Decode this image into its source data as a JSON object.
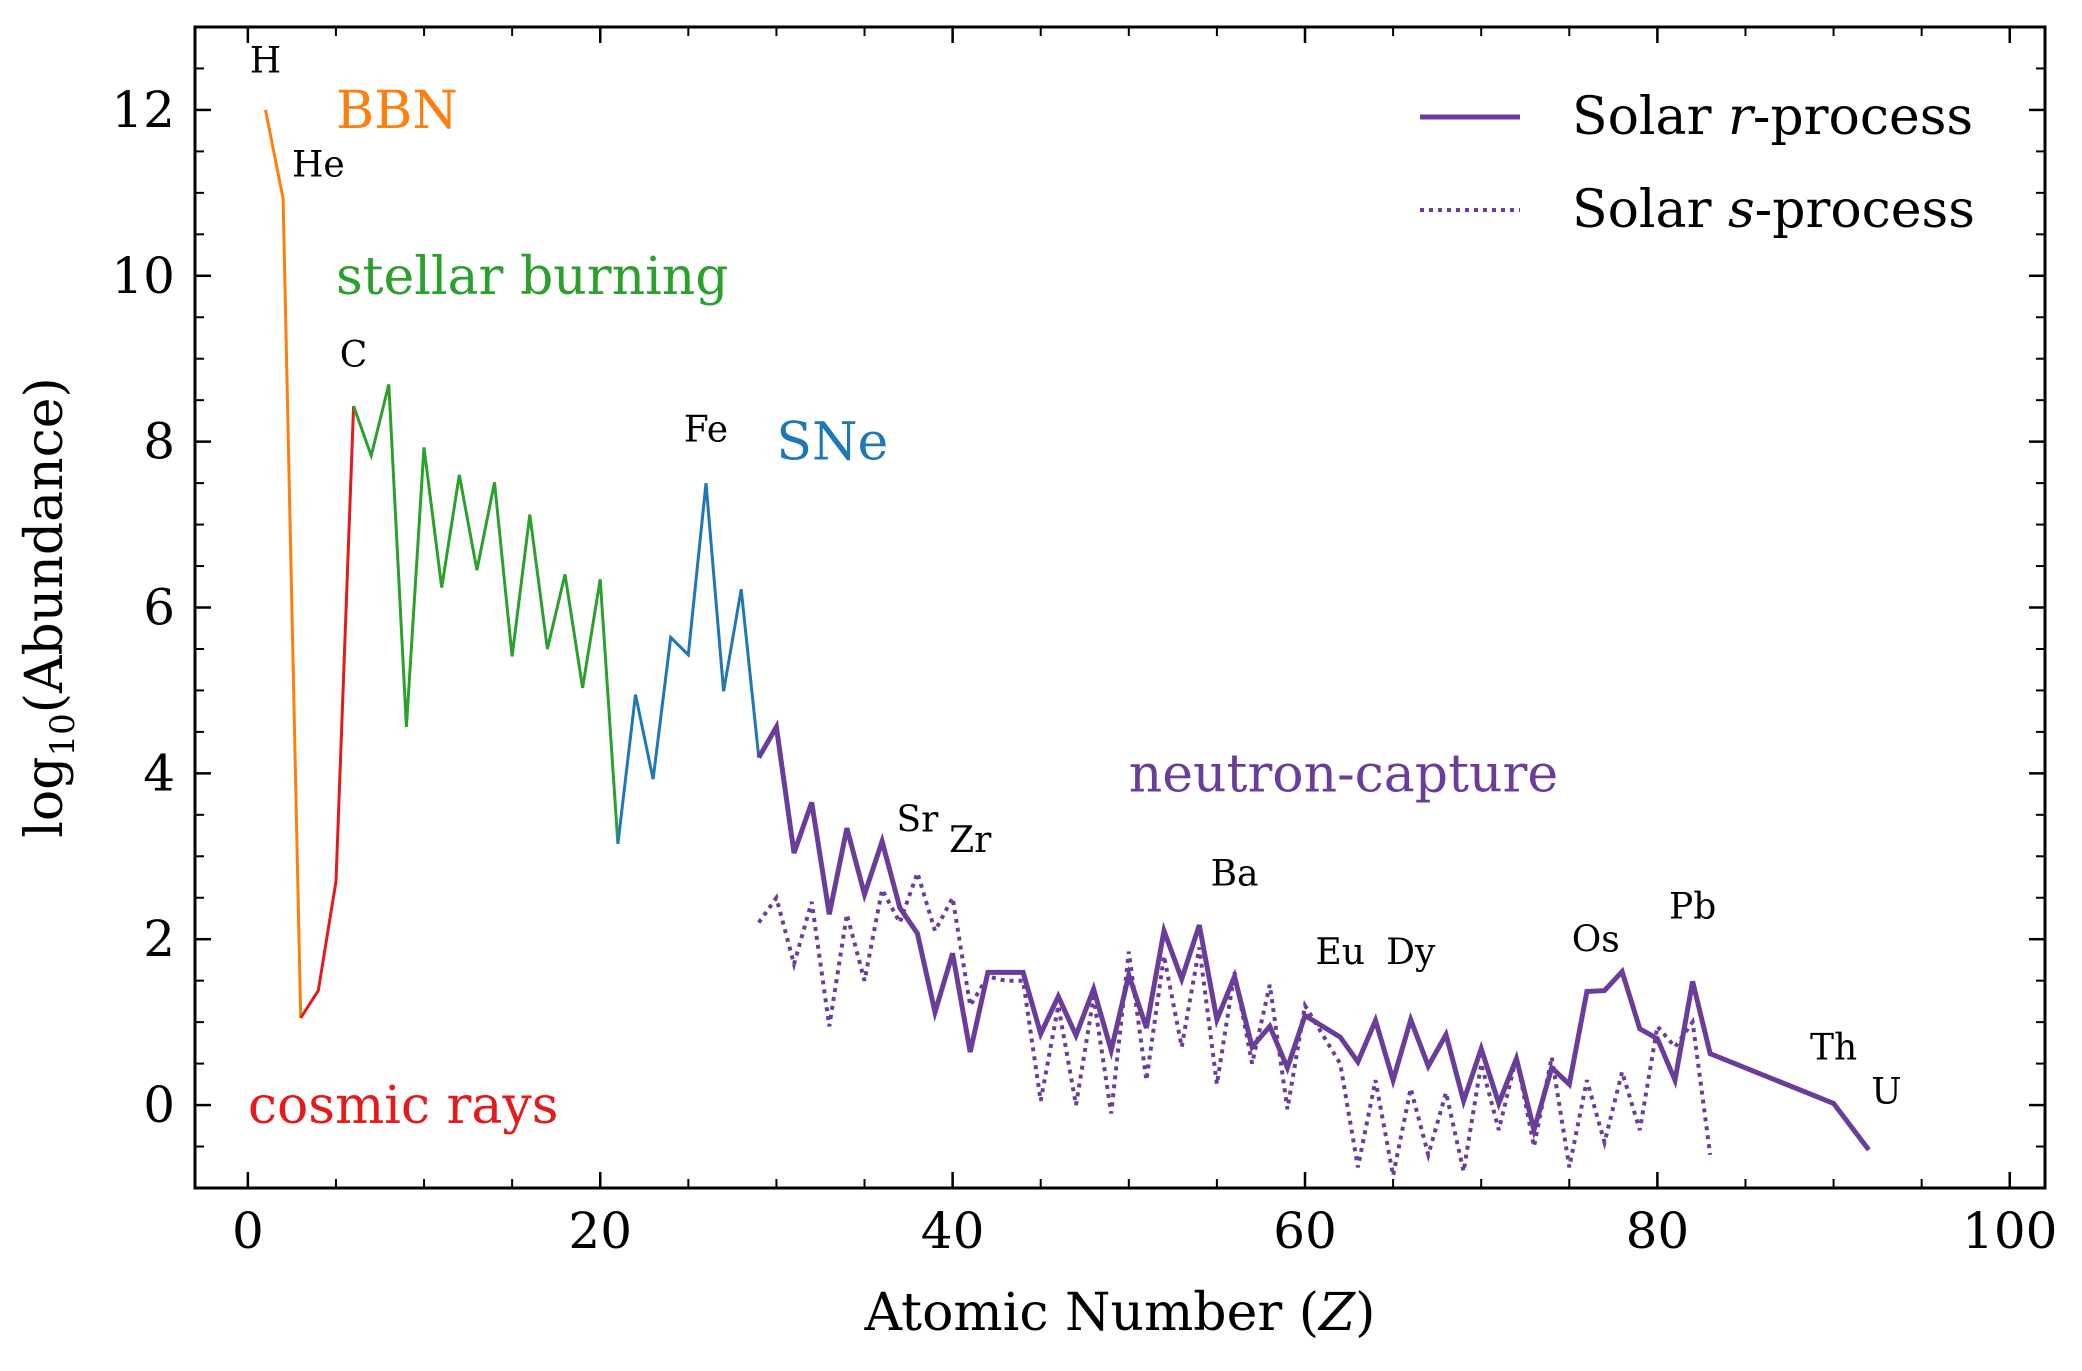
{
  "chart_data": {
    "type": "line",
    "xlabel": "Atomic Number (",
    "xlabel_var": "Z",
    "xlabel_close": ")",
    "ylabel": "log",
    "ylabel_sub": "10",
    "ylabel_rest": "(Abundance)",
    "xlim": [
      -3,
      102
    ],
    "ylim": [
      -1,
      13
    ],
    "xticks": [
      0,
      20,
      40,
      60,
      80,
      100
    ],
    "yticks": [
      0,
      2,
      4,
      6,
      8,
      10,
      12
    ],
    "grid": false,
    "legend_position": "top-right",
    "colors": {
      "bbn": "#ff7f0e",
      "cosmic": "#e41a1c",
      "stellar": "#2ca02c",
      "sne": "#1f77b4",
      "ncapture": "#6a3d9a"
    },
    "series": [
      {
        "key": "bbn",
        "color": "#ff7f0e",
        "style": "solid",
        "width": 3,
        "x": [
          1,
          2,
          3
        ],
        "y": [
          12.0,
          10.93,
          1.05
        ]
      },
      {
        "key": "cosmic",
        "color": "#e41a1c",
        "style": "solid",
        "width": 3,
        "x": [
          3,
          4,
          5,
          6
        ],
        "y": [
          1.05,
          1.38,
          2.7,
          8.43
        ]
      },
      {
        "key": "stellar",
        "color": "#2ca02c",
        "style": "solid",
        "width": 3,
        "x": [
          6,
          7,
          8,
          9,
          10,
          11,
          12,
          13,
          14,
          15,
          16,
          17,
          18,
          19,
          20,
          21
        ],
        "y": [
          8.43,
          7.83,
          8.69,
          4.56,
          7.93,
          6.24,
          7.6,
          6.45,
          7.51,
          5.41,
          7.12,
          5.5,
          6.4,
          5.03,
          6.34,
          3.15
        ]
      },
      {
        "key": "sne",
        "color": "#1f77b4",
        "style": "solid",
        "width": 3,
        "x": [
          21,
          22,
          23,
          24,
          25,
          26,
          27,
          28,
          29
        ],
        "y": [
          3.15,
          4.95,
          3.93,
          5.64,
          5.43,
          7.5,
          4.99,
          6.22,
          4.19
        ]
      },
      {
        "name": "Solar r-process",
        "key": "r",
        "color": "#6a3d9a",
        "style": "solid",
        "width": 5,
        "x": [
          29,
          30,
          31,
          32,
          33,
          34,
          35,
          36,
          37,
          38,
          39,
          40,
          41,
          42,
          43,
          44,
          45,
          46,
          47,
          48,
          49,
          50,
          51,
          52,
          53,
          54,
          55,
          56,
          57,
          58,
          59,
          60,
          62,
          63,
          64,
          65,
          66,
          67,
          68,
          69,
          70,
          71,
          72,
          73,
          74,
          75,
          76,
          77,
          78,
          79,
          80,
          81,
          82,
          83,
          90,
          92
        ],
        "y": [
          4.19,
          4.56,
          3.04,
          3.65,
          2.3,
          3.34,
          2.54,
          3.18,
          2.38,
          2.07,
          1.12,
          1.83,
          0.64,
          1.6,
          1.6,
          1.6,
          0.86,
          1.31,
          0.84,
          1.4,
          0.66,
          1.57,
          0.93,
          2.1,
          1.52,
          2.17,
          1.03,
          1.55,
          0.7,
          0.95,
          0.45,
          1.08,
          0.82,
          0.52,
          1.02,
          0.3,
          1.03,
          0.47,
          0.85,
          0.05,
          0.68,
          0.02,
          0.56,
          -0.3,
          0.45,
          0.25,
          1.37,
          1.38,
          1.61,
          0.92,
          0.8,
          0.3,
          1.49,
          0.62,
          0.02,
          -0.54
        ]
      },
      {
        "name": "Solar s-process",
        "key": "s",
        "color": "#6a3d9a",
        "style": "dotted",
        "width": 4,
        "x": [
          29,
          30,
          31,
          32,
          33,
          34,
          35,
          36,
          37,
          38,
          39,
          40,
          41,
          42,
          43,
          44,
          45,
          46,
          47,
          48,
          49,
          50,
          51,
          52,
          53,
          54,
          55,
          56,
          57,
          58,
          59,
          60,
          62,
          63,
          64,
          65,
          66,
          67,
          68,
          69,
          70,
          71,
          72,
          73,
          74,
          75,
          76,
          77,
          78,
          79,
          80,
          81,
          82,
          83
        ],
        "y": [
          2.2,
          2.5,
          1.7,
          2.45,
          0.95,
          2.3,
          1.5,
          2.6,
          2.2,
          2.8,
          2.1,
          2.5,
          1.2,
          1.55,
          1.5,
          1.5,
          0.05,
          1.2,
          0.0,
          1.3,
          -0.1,
          1.85,
          0.3,
          1.8,
          0.7,
          1.9,
          0.25,
          1.6,
          0.5,
          1.45,
          -0.05,
          1.2,
          0.5,
          -0.75,
          0.3,
          -0.85,
          0.2,
          -0.6,
          0.15,
          -0.8,
          0.5,
          -0.3,
          0.58,
          -0.5,
          0.58,
          -0.75,
          0.3,
          -0.45,
          0.4,
          -0.3,
          0.95,
          0.7,
          1.0,
          -0.6
        ]
      }
    ],
    "legend": [
      {
        "label_prefix": "Solar ",
        "label_var": "r",
        "label_suffix": "-process",
        "style": "solid"
      },
      {
        "label_prefix": "Solar ",
        "label_var": "s",
        "label_suffix": "-process",
        "style": "dotted"
      }
    ],
    "element_labels": [
      {
        "text": "H",
        "x": 1.0,
        "y": 12.45
      },
      {
        "text": "He",
        "x": 4.0,
        "y": 11.2
      },
      {
        "text": "C",
        "x": 6.0,
        "y": 8.9
      },
      {
        "text": "Fe",
        "x": 26.0,
        "y": 8.0
      },
      {
        "text": "Sr",
        "x": 38.0,
        "y": 3.3
      },
      {
        "text": "Zr",
        "x": 41.0,
        "y": 3.05
      },
      {
        "text": "Ba",
        "x": 56.0,
        "y": 2.65
      },
      {
        "text": "Eu",
        "x": 62.0,
        "y": 1.7
      },
      {
        "text": "Dy",
        "x": 66.0,
        "y": 1.7
      },
      {
        "text": "Os",
        "x": 76.5,
        "y": 1.85
      },
      {
        "text": "Pb",
        "x": 82.0,
        "y": 2.25
      },
      {
        "text": "Th",
        "x": 90.0,
        "y": 0.55
      },
      {
        "text": "U",
        "x": 93.0,
        "y": 0.02
      }
    ],
    "region_labels": [
      {
        "text": "BBN",
        "x": 5.0,
        "y": 12.0,
        "color": "#ff7f0e"
      },
      {
        "text": "stellar burning",
        "x": 5.0,
        "y": 10.0,
        "color": "#2ca02c"
      },
      {
        "text": "SNe",
        "x": 30.0,
        "y": 8.0,
        "color": "#1f77b4"
      },
      {
        "text": "neutron-capture",
        "x": 50.0,
        "y": 4.0,
        "color": "#6a3d9a"
      },
      {
        "text": "cosmic rays",
        "x": 0.0,
        "y": 0.0,
        "color": "#e41a1c"
      }
    ]
  }
}
